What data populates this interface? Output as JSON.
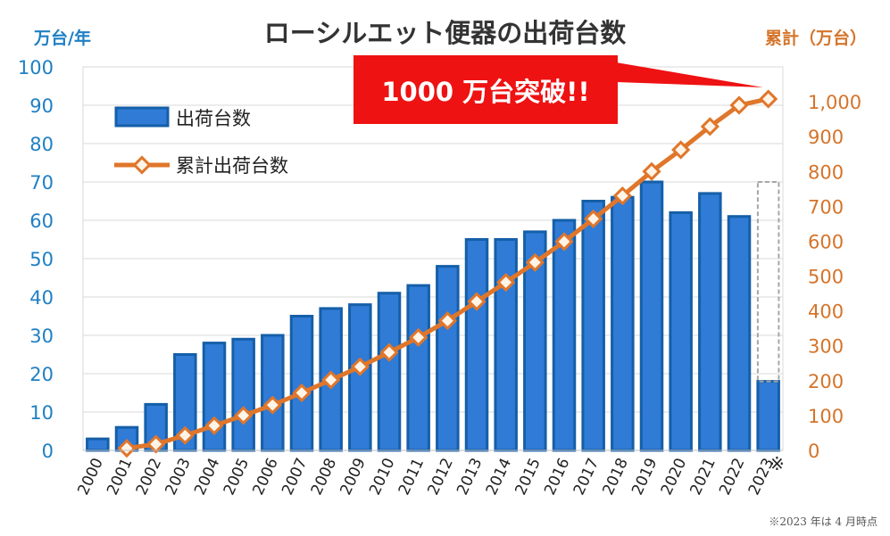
{
  "title": "ローシルエット便器の出荷台数",
  "y_left_unit": "万台/年",
  "y_right_unit": "累計（万台）",
  "callout": "1000 万台突破!!",
  "footnote": "※2023 年は 4 月時点",
  "asterisk": "※",
  "colors": {
    "bar_fill": "#2f7bd6",
    "bar_stroke": "#155fa8",
    "line": "#e0762a",
    "marker_fill": "#fff4e8",
    "callout_bg": "#ee1212",
    "grid": "#d9d9d9",
    "left_axis_text": "#1f7fc4",
    "right_axis_text": "#d5742a",
    "dashed_box": "#a6a6a6"
  },
  "chart_data": {
    "type": "bar",
    "title": "ローシルエット便器の出荷台数",
    "categories": [
      "2000",
      "2001",
      "2002",
      "2003",
      "2004",
      "2005",
      "2006",
      "2007",
      "2008",
      "2009",
      "2010",
      "2011",
      "2012",
      "2013",
      "2014",
      "2015",
      "2016",
      "2017",
      "2018",
      "2019",
      "2020",
      "2021",
      "2022",
      "2023"
    ],
    "series": [
      {
        "name": "出荷台数",
        "type": "bar",
        "axis": "left",
        "values": [
          3,
          6,
          12,
          25,
          28,
          29,
          30,
          35,
          37,
          38,
          41,
          43,
          48,
          55,
          55,
          57,
          60,
          65,
          66,
          70,
          62,
          67,
          61,
          18
        ]
      },
      {
        "name": "累計出荷台数",
        "type": "line",
        "axis": "right",
        "values": [
          null,
          6,
          18,
          43,
          71,
          100,
          130,
          165,
          202,
          240,
          281,
          324,
          372,
          427,
          482,
          539,
          599,
          664,
          730,
          800,
          862,
          929,
          990,
          1008
        ]
      }
    ],
    "y_left": {
      "label": "万台/年",
      "ylim": [
        0,
        100
      ],
      "ticks": [
        "0",
        "10",
        "20",
        "30",
        "40",
        "50",
        "60",
        "70",
        "80",
        "90",
        "100"
      ]
    },
    "y_right": {
      "label": "累計（万台）",
      "ylim": [
        0,
        1100
      ],
      "ticks": [
        "0",
        "100",
        "200",
        "300",
        "400",
        "500",
        "600",
        "700",
        "800",
        "900",
        "1,000"
      ]
    },
    "projection_2023": 70,
    "legend": {
      "placement": "top-left",
      "entries": [
        "出荷台数",
        "累計出荷台数"
      ]
    },
    "grid": true
  }
}
